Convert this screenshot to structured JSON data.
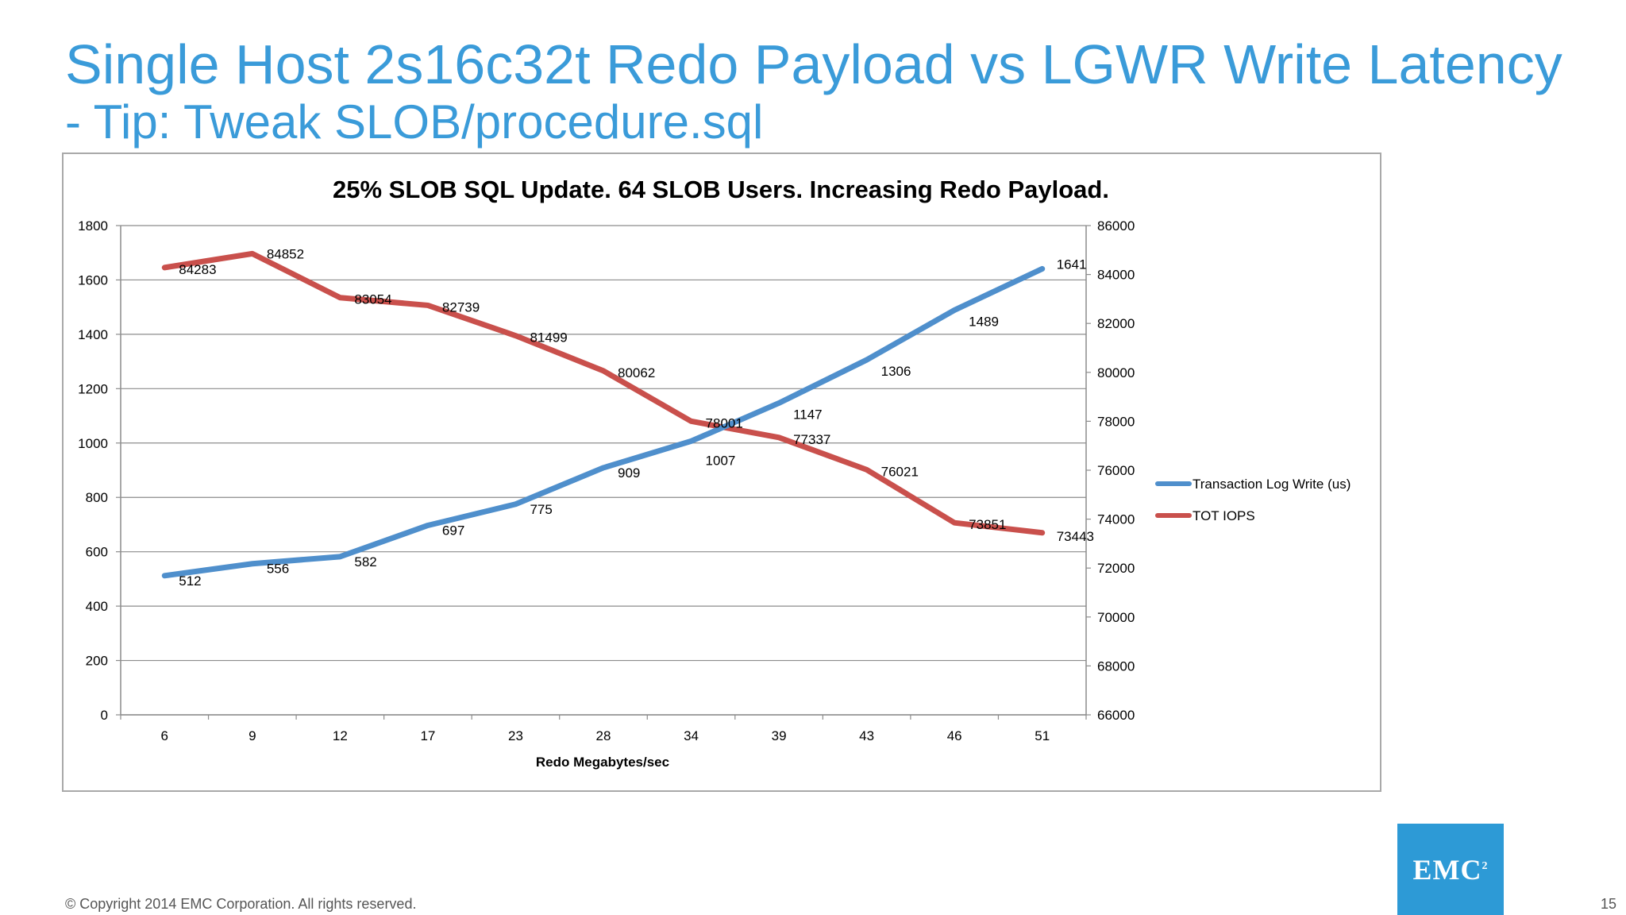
{
  "slide": {
    "title": "Single Host 2s16c32t Redo Payload vs LGWR Write Latency",
    "subtitle": "- Tip: Tweak SLOB/procedure.sql",
    "copyright": "© Copyright 2014 EMC Corporation. All rights reserved.",
    "page_number": "15",
    "logo_text": "EMC",
    "logo_sup": "2"
  },
  "colors": {
    "title": "#3a9bd9",
    "series_latency": "#4f8fcc",
    "series_iops": "#c9504c",
    "gridline": "#8c8c8c",
    "logo_bg": "#2d9ad6"
  },
  "chart_data": {
    "type": "line",
    "title": "25% SLOB SQL Update. 64 SLOB Users. Increasing Redo Payload.",
    "xlabel": "Redo Megabytes/sec",
    "categories": [
      "6",
      "9",
      "12",
      "17",
      "23",
      "28",
      "34",
      "39",
      "43",
      "46",
      "51"
    ],
    "y_left": {
      "min": 0,
      "max": 1800,
      "step": 200,
      "ticks": [
        "0",
        "200",
        "400",
        "600",
        "800",
        "1000",
        "1200",
        "1400",
        "1600",
        "1800"
      ]
    },
    "y_right": {
      "min": 66000,
      "max": 86000,
      "step": 2000,
      "ticks": [
        "66000",
        "68000",
        "70000",
        "72000",
        "74000",
        "76000",
        "78000",
        "80000",
        "82000",
        "84000",
        "86000"
      ]
    },
    "grid": true,
    "legend_position": "right",
    "series": [
      {
        "name": "Transaction Log Write (us)",
        "axis": "left",
        "color": "#4f8fcc",
        "values": [
          512,
          556,
          582,
          697,
          775,
          909,
          1007,
          1147,
          1306,
          1489,
          1641
        ],
        "labels": [
          "512",
          "556",
          "582",
          "697",
          "775",
          "909",
          "1007",
          "1147",
          "1306",
          "1489",
          "1641"
        ]
      },
      {
        "name": "TOT IOPS",
        "axis": "right",
        "color": "#c9504c",
        "values": [
          84283,
          84852,
          83054,
          82739,
          81499,
          80062,
          78001,
          77337,
          76021,
          73851,
          73443
        ],
        "labels": [
          "84283",
          "84852",
          "83054",
          "82739",
          "81499",
          "80062",
          "78001",
          "77337",
          "76021",
          "73851",
          "73443"
        ]
      }
    ]
  }
}
